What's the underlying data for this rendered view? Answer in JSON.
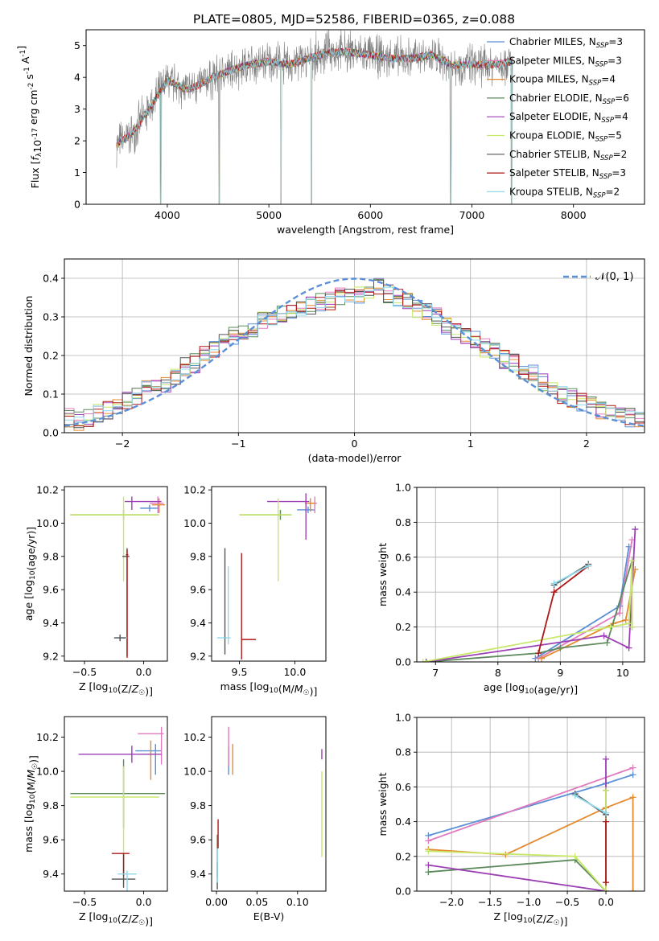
{
  "figure_title": "PLATE=0805, MJD=52586, FIBERID=0365, z=0.088",
  "colors": {
    "Chabrier MILES": "#5b8fd6",
    "Salpeter MILES": "#e07bbf",
    "Kroupa MILES": "#e58a2e",
    "Chabrier ELODIE": "#5c8a5c",
    "Salpeter ELODIE": "#9c3fb5",
    "Kroupa ELODIE": "#c8e86a",
    "Chabrier STELIB": "#555555",
    "Salpeter STELIB": "#b01818",
    "Kroupa STELIB": "#8ed8ea",
    "data": "#808080",
    "gauss": "#5b8fd6"
  },
  "chart_data": [
    {
      "id": "spectrum",
      "type": "line",
      "xlabel": "wavelength [Angstrom, rest frame]",
      "ylabel": "Flux [f_λ10^-17 erg cm^-2 s^-1 A^-1]",
      "xlim": [
        3200,
        8700
      ],
      "ylim": [
        0,
        5.5
      ],
      "xticks": [
        4000,
        5000,
        6000,
        7000,
        8000
      ],
      "yticks": [
        0,
        1,
        2,
        3,
        4,
        5
      ],
      "legend": [
        "Chabrier MILES, N_SSP=3",
        "Salpeter MILES, N_SSP=3",
        "Kroupa MILES, N_SSP=4",
        "Chabrier ELODIE, N_SSP=6",
        "Salpeter ELODIE, N_SSP=4",
        "Kroupa ELODIE, N_SSP=5",
        "Chabrier STELIB, N_SSP=2",
        "Salpeter STELIB, N_SSP=3",
        "Kroupa STELIB, N_SSP=2"
      ],
      "legend_position": "right",
      "continuum": [
        [
          3500,
          1.9
        ],
        [
          3650,
          2.2
        ],
        [
          3800,
          2.9
        ],
        [
          4000,
          3.9
        ],
        [
          4200,
          3.6
        ],
        [
          4400,
          3.9
        ],
        [
          4600,
          4.2
        ],
        [
          4800,
          4.4
        ],
        [
          5000,
          4.5
        ],
        [
          5200,
          4.4
        ],
        [
          5400,
          4.6
        ],
        [
          5600,
          4.8
        ],
        [
          5800,
          4.8
        ],
        [
          6000,
          4.7
        ],
        [
          6200,
          4.6
        ],
        [
          6400,
          4.6
        ],
        [
          6600,
          4.7
        ],
        [
          6800,
          4.4
        ],
        [
          7000,
          4.4
        ],
        [
          7200,
          4.4
        ],
        [
          7400,
          4.5
        ]
      ],
      "model_x_range": [
        3500,
        7400
      ],
      "data_x_range": [
        3500,
        7400
      ],
      "absorption_lines": [
        3934,
        4510,
        5120,
        5420,
        6790,
        7390
      ]
    },
    {
      "id": "residuals",
      "type": "line",
      "xlabel": "(data-model)/error",
      "ylabel": "Normed distribution",
      "xlim": [
        -2.5,
        2.5
      ],
      "ylim": [
        0,
        0.45
      ],
      "xticks": [
        -2,
        -1,
        0,
        1,
        2
      ],
      "yticks": [
        0.0,
        0.1,
        0.2,
        0.3,
        0.4
      ],
      "legend": [
        "𝒩(0, 1)"
      ],
      "legend_position": "top-right",
      "grid": true,
      "hist_base": [
        0.04,
        0.03,
        0.04,
        0.05,
        0.06,
        0.07,
        0.08,
        0.09,
        0.11,
        0.12,
        0.13,
        0.15,
        0.17,
        0.18,
        0.2,
        0.22,
        0.24,
        0.25,
        0.26,
        0.27,
        0.29,
        0.3,
        0.31,
        0.31,
        0.32,
        0.33,
        0.34,
        0.34,
        0.35,
        0.35,
        0.36,
        0.37,
        0.38,
        0.36,
        0.35,
        0.34,
        0.32,
        0.31,
        0.3,
        0.28,
        0.26,
        0.25,
        0.24,
        0.22,
        0.21,
        0.19,
        0.18,
        0.16,
        0.15,
        0.13,
        0.12,
        0.1,
        0.09,
        0.08,
        0.07,
        0.06,
        0.05,
        0.04,
        0.04,
        0.04
      ]
    },
    {
      "id": "age_vs_Z",
      "type": "scatter",
      "xlabel": "Z [log10(Z/Z☉)]",
      "ylabel": "age [log10(age/yr)]",
      "xlim": [
        -0.67,
        0.2
      ],
      "ylim": [
        9.17,
        10.22
      ],
      "xticks": [
        -0.5,
        0.0
      ],
      "yticks": [
        9.2,
        9.4,
        9.6,
        9.8,
        10.0,
        10.2
      ],
      "errorbars": [
        {
          "model": "Chabrier MILES",
          "x": 0.05,
          "xerr": [
            0.08,
            0.08
          ],
          "y": 10.09,
          "yerr": [
            0.02,
            0.02
          ]
        },
        {
          "model": "Salpeter MILES",
          "x": 0.12,
          "xerr": [
            0.07,
            0.05
          ],
          "y": 10.12,
          "yerr": [
            0.06,
            0.04
          ]
        },
        {
          "model": "Kroupa MILES",
          "x": 0.13,
          "xerr": [
            0.06,
            0.05
          ],
          "y": 10.11,
          "yerr": [
            0.05,
            0.04
          ]
        },
        {
          "model": "Chabrier ELODIE",
          "x": -0.17,
          "xerr": [
            0.45,
            0.3
          ],
          "y": 10.05,
          "yerr": [
            0.03,
            0.03
          ]
        },
        {
          "model": "Salpeter ELODIE",
          "x": -0.1,
          "xerr": [
            0.06,
            0.25
          ],
          "y": 10.13,
          "yerr": [
            0.05,
            0.03
          ]
        },
        {
          "model": "Kroupa ELODIE",
          "x": -0.17,
          "xerr": [
            0.45,
            0.3
          ],
          "y": 10.05,
          "yerr": [
            0.4,
            0.11
          ]
        },
        {
          "model": "Chabrier STELIB",
          "x": -0.14,
          "xerr": [
            0.04,
            0.02
          ],
          "y": 9.8,
          "yerr": [
            0.6,
            0.05
          ]
        },
        {
          "model": "Salpeter STELIB",
          "x": -0.14,
          "xerr": [
            0.01,
            0.01
          ],
          "y": 9.81,
          "yerr": [
            0.62,
            0.03
          ]
        },
        {
          "model": "Kroupa STELIB",
          "x": -0.2,
          "xerr": [
            0.04,
            0.06
          ],
          "y": 9.31,
          "yerr": [
            0.02,
            0.02
          ]
        },
        {
          "model": "Chabrier STELIB",
          "x": -0.2,
          "xerr": [
            0.05,
            0.05
          ],
          "y": 9.31,
          "yerr": [
            0.02,
            0.02
          ]
        }
      ]
    },
    {
      "id": "age_vs_mass",
      "type": "scatter",
      "xlabel": "mass [log10(M/M☉)]",
      "ylabel": "",
      "xlim": [
        9.25,
        10.28
      ],
      "ylim": [
        9.17,
        10.22
      ],
      "xticks": [
        9.5,
        10.0
      ],
      "yticks": [
        9.2,
        9.4,
        9.6,
        9.8,
        10.0,
        10.2
      ],
      "errorbars": [
        {
          "model": "Chabrier MILES",
          "x": 10.12,
          "xerr": [
            0.1,
            0.06
          ],
          "y": 10.08,
          "yerr": [
            0.02,
            0.02
          ]
        },
        {
          "model": "Salpeter MILES",
          "x": 10.18,
          "xerr": [
            0.06,
            0.02
          ],
          "y": 10.12,
          "yerr": [
            0.06,
            0.04
          ]
        },
        {
          "model": "Kroupa MILES",
          "x": 10.14,
          "xerr": [
            0.05,
            0.04
          ],
          "y": 10.12,
          "yerr": [
            0.05,
            0.03
          ]
        },
        {
          "model": "Chabrier ELODIE",
          "x": 9.87,
          "xerr": [
            0.37,
            0.1
          ],
          "y": 10.05,
          "yerr": [
            0.03,
            0.03
          ]
        },
        {
          "model": "Salpeter ELODIE",
          "x": 10.1,
          "xerr": [
            0.35,
            0.03
          ],
          "y": 10.13,
          "yerr": [
            0.23,
            0.05
          ]
        },
        {
          "model": "Kroupa ELODIE",
          "x": 9.85,
          "xerr": [
            0.35,
            0.12
          ],
          "y": 10.05,
          "yerr": [
            0.4,
            0.1
          ]
        },
        {
          "model": "Chabrier STELIB",
          "x": 9.37,
          "xerr": [
            0.01,
            0.01
          ],
          "y": 9.31,
          "yerr": [
            0.1,
            0.54
          ]
        },
        {
          "model": "Salpeter STELIB",
          "x": 9.52,
          "xerr": [
            0.0,
            0.13
          ],
          "y": 9.3,
          "yerr": [
            0.12,
            0.52
          ]
        },
        {
          "model": "Kroupa STELIB",
          "x": 9.4,
          "xerr": [
            0.1,
            0.02
          ],
          "y": 9.31,
          "yerr": [
            0.04,
            0.43
          ]
        }
      ]
    },
    {
      "id": "weight_vs_age",
      "type": "line",
      "xlabel": "age [log10(age/yr)]",
      "ylabel": "mass weight",
      "xlim": [
        6.7,
        10.35
      ],
      "ylim": [
        0,
        1
      ],
      "xticks": [
        7,
        8,
        9,
        10
      ],
      "yticks": [
        0.0,
        0.2,
        0.4,
        0.6,
        0.8,
        1.0
      ],
      "grid": true,
      "series": [
        {
          "model": "Chabrier MILES",
          "x": [
            8.6,
            9.95,
            10.1
          ],
          "y": [
            0.02,
            0.32,
            0.66
          ]
        },
        {
          "model": "Salpeter MILES",
          "x": [
            8.65,
            9.95,
            10.15
          ],
          "y": [
            0.02,
            0.28,
            0.7
          ]
        },
        {
          "model": "Kroupa MILES",
          "x": [
            8.7,
            9.85,
            10.05,
            10.2
          ],
          "y": [
            0.02,
            0.22,
            0.24,
            0.53
          ]
        },
        {
          "model": "Chabrier ELODIE",
          "x": [
            6.85,
            8.65,
            9.0,
            9.75,
            10.15,
            10.15
          ],
          "y": [
            0.0,
            0.05,
            0.08,
            0.11,
            0.58,
            0.2
          ]
        },
        {
          "model": "Salpeter ELODIE",
          "x": [
            6.85,
            9.7,
            10.1,
            10.2
          ],
          "y": [
            0.0,
            0.15,
            0.08,
            0.76
          ]
        },
        {
          "model": "Kroupa ELODIE",
          "x": [
            6.8,
            9.8,
            10.1,
            10.15,
            10.15
          ],
          "y": [
            0.0,
            0.2,
            0.22,
            0.58,
            0.2
          ]
        },
        {
          "model": "Chabrier STELIB",
          "x": [
            8.9,
            9.45
          ],
          "y": [
            0.44,
            0.56
          ]
        },
        {
          "model": "Salpeter STELIB",
          "x": [
            8.65,
            8.9,
            9.45
          ],
          "y": [
            0.05,
            0.4,
            0.55
          ]
        },
        {
          "model": "Kroupa STELIB",
          "x": [
            8.9,
            9.45
          ],
          "y": [
            0.45,
            0.55
          ]
        }
      ]
    },
    {
      "id": "mass_vs_Z",
      "type": "scatter",
      "xlabel": "Z [log10(Z/Z☉)]",
      "ylabel": "mass [log10(M/M☉)]",
      "xlim": [
        -0.67,
        0.2
      ],
      "ylim": [
        9.3,
        10.32
      ],
      "xticks": [
        -0.5,
        0.0
      ],
      "yticks": [
        9.4,
        9.6,
        9.8,
        10.0,
        10.2
      ],
      "errorbars": [
        {
          "model": "Chabrier MILES",
          "x": 0.1,
          "xerr": [
            0.17,
            0.05
          ],
          "y": 10.12,
          "yerr": [
            0.14,
            0.04
          ]
        },
        {
          "model": "Salpeter MILES",
          "x": 0.15,
          "xerr": [
            0.2,
            0.02
          ],
          "y": 10.22,
          "yerr": [
            0.18,
            0.04
          ]
        },
        {
          "model": "Kroupa MILES",
          "x": 0.06,
          "xerr": [
            0.1,
            0.07
          ],
          "y": 10.1,
          "yerr": [
            0.15,
            0.08
          ]
        },
        {
          "model": "Chabrier ELODIE",
          "x": -0.17,
          "xerr": [
            0.45,
            0.35
          ],
          "y": 9.87,
          "yerr": [
            0.2,
            0.2
          ]
        },
        {
          "model": "Salpeter ELODIE",
          "x": -0.1,
          "xerr": [
            0.45,
            0.25
          ],
          "y": 10.1,
          "yerr": [
            0.05,
            0.05
          ]
        },
        {
          "model": "Kroupa ELODIE",
          "x": -0.17,
          "xerr": [
            0.45,
            0.3
          ],
          "y": 9.85,
          "yerr": [
            0.33,
            0.18
          ]
        },
        {
          "model": "Chabrier STELIB",
          "x": -0.17,
          "xerr": [
            0.1,
            0.1
          ],
          "y": 9.37,
          "yerr": [
            0.05,
            0.15
          ]
        },
        {
          "model": "Salpeter STELIB",
          "x": -0.17,
          "xerr": [
            0.1,
            0.05
          ],
          "y": 9.52,
          "yerr": [
            0.13,
            0.0
          ]
        },
        {
          "model": "Kroupa STELIB",
          "x": -0.14,
          "xerr": [
            0.08,
            0.08
          ],
          "y": 9.4,
          "yerr": [
            0.1,
            0.02
          ]
        }
      ]
    },
    {
      "id": "mass_vs_ebv",
      "type": "scatter",
      "xlabel": "E(B-V)",
      "ylabel": "",
      "xlim": [
        -0.006,
        0.135
      ],
      "ylim": [
        9.3,
        10.32
      ],
      "xticks": [
        0.0,
        0.05,
        0.1
      ],
      "yticks": [
        9.4,
        9.6,
        9.8,
        10.0,
        10.2
      ],
      "errorbars": [
        {
          "model": "Chabrier MILES",
          "x": 0.015,
          "y": 10.1,
          "yerr": [
            0.12,
            0.05
          ]
        },
        {
          "model": "Salpeter MILES",
          "x": 0.015,
          "y": 10.15,
          "yerr": [
            0.12,
            0.11
          ]
        },
        {
          "model": "Kroupa MILES",
          "x": 0.02,
          "y": 10.08,
          "yerr": [
            0.1,
            0.08
          ]
        },
        {
          "model": "Chabrier ELODIE",
          "x": 0.001,
          "y": 9.48,
          "yerr": [
            0.1,
            0.15
          ]
        },
        {
          "model": "Salpeter ELODIE",
          "x": 0.13,
          "y": 10.1,
          "yerr": [
            0.03,
            0.03
          ]
        },
        {
          "model": "Kroupa ELODIE",
          "x": 0.13,
          "y": 9.75,
          "yerr": [
            0.25,
            0.25
          ]
        },
        {
          "model": "Chabrier STELIB",
          "x": 0.001,
          "y": 9.37,
          "yerr": [
            0.06,
            0.1
          ]
        },
        {
          "model": "Salpeter STELIB",
          "x": 0.002,
          "y": 9.62,
          "yerr": [
            0.07,
            0.1
          ]
        },
        {
          "model": "Kroupa STELIB",
          "x": 0.001,
          "y": 9.45,
          "yerr": [
            0.1,
            0.1
          ]
        }
      ]
    },
    {
      "id": "weight_vs_Z",
      "type": "line",
      "xlabel": "Z [log10(Z/Z☉)]",
      "ylabel": "mass weight",
      "xlim": [
        -2.45,
        0.5
      ],
      "ylim": [
        0,
        1
      ],
      "xticks": [
        -2.0,
        -1.5,
        -1.0,
        -0.5,
        0.0
      ],
      "yticks": [
        0.0,
        0.2,
        0.4,
        0.6,
        0.8,
        1.0
      ],
      "grid": true,
      "series": [
        {
          "model": "Chabrier MILES",
          "x": [
            -2.3,
            0.0,
            0.35
          ],
          "y": [
            0.32,
            0.62,
            0.67
          ]
        },
        {
          "model": "Salpeter MILES",
          "x": [
            -2.3,
            0.35
          ],
          "y": [
            0.29,
            0.71
          ]
        },
        {
          "model": "Kroupa MILES",
          "x": [
            -2.3,
            -1.3,
            0.0,
            0.35,
            0.35
          ],
          "y": [
            0.24,
            0.21,
            0.48,
            0.54,
            0.0
          ]
        },
        {
          "model": "Chabrier ELODIE",
          "x": [
            -2.3,
            -0.4,
            0.0,
            0.0
          ],
          "y": [
            0.11,
            0.18,
            0.0,
            0.58
          ]
        },
        {
          "model": "Salpeter ELODIE",
          "x": [
            -2.3,
            0.0,
            0.0
          ],
          "y": [
            0.15,
            0.0,
            0.76
          ]
        },
        {
          "model": "Kroupa ELODIE",
          "x": [
            -2.3,
            -0.4,
            0.0,
            0.0
          ],
          "y": [
            0.23,
            0.2,
            0.0,
            0.58
          ]
        },
        {
          "model": "Chabrier STELIB",
          "x": [
            -0.4,
            0.0
          ],
          "y": [
            0.56,
            0.44
          ]
        },
        {
          "model": "Salpeter STELIB",
          "x": [
            0.0,
            0.0
          ],
          "y": [
            0.05,
            0.4
          ]
        },
        {
          "model": "Kroupa STELIB",
          "x": [
            -0.4,
            0.0
          ],
          "y": [
            0.55,
            0.45
          ]
        }
      ]
    }
  ]
}
